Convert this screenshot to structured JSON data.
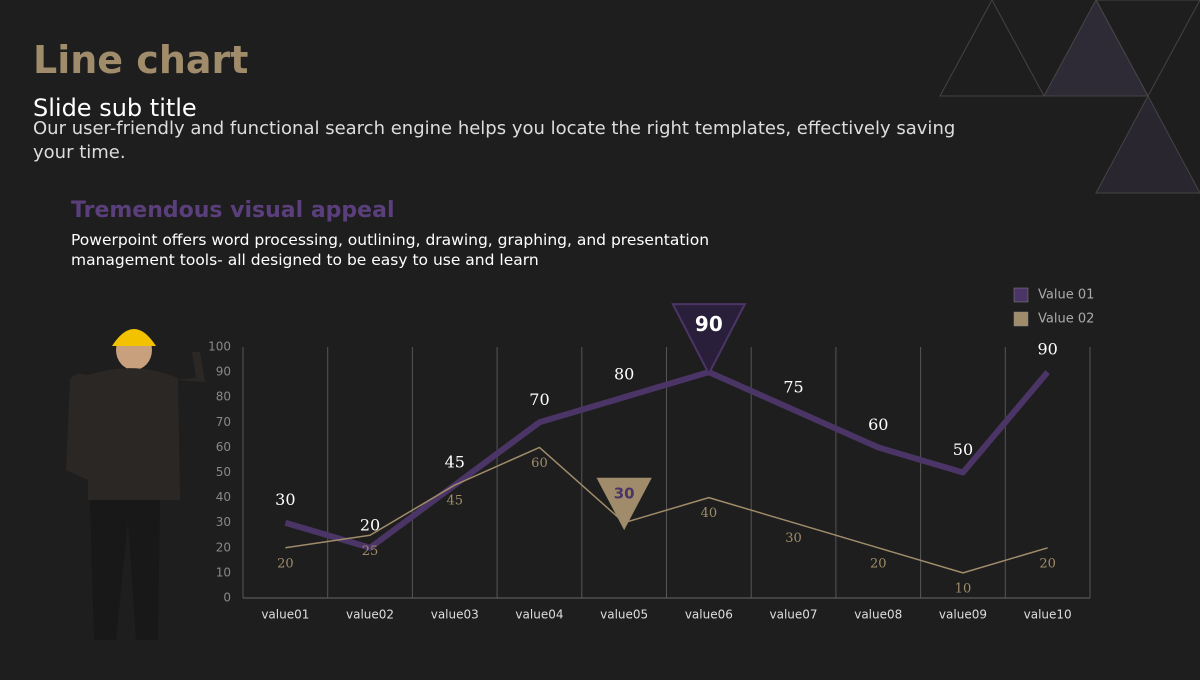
{
  "slide": {
    "title": "Line chart",
    "subtitle": "Slide sub title",
    "body": "Our user-friendly and functional search engine helps you locate the right templates, effectively saving your time.",
    "heading": "Tremendous visual appeal",
    "text": "Powerpoint offers word processing, outlining, drawing, graphing, and presentation management tools- all designed to be easy to use and learn"
  },
  "chart_data": {
    "type": "line",
    "categories": [
      "value01",
      "value02",
      "value03",
      "value04",
      "value05",
      "value06",
      "value07",
      "value08",
      "value09",
      "value10"
    ],
    "series": [
      {
        "name": "Value 01",
        "color": "#4b3566",
        "values": [
          30,
          20,
          45,
          70,
          80,
          90,
          75,
          60,
          50,
          90
        ],
        "callout_index": 5
      },
      {
        "name": "Value 02",
        "color": "#a08c6a",
        "values": [
          20,
          25,
          45,
          60,
          30,
          40,
          30,
          20,
          10,
          20
        ],
        "callout_index": 4
      }
    ],
    "ylim": [
      0,
      100
    ],
    "yticks": [
      0,
      10,
      20,
      30,
      40,
      50,
      60,
      70,
      80,
      90,
      100
    ],
    "grid": true,
    "legend": "top-right"
  }
}
